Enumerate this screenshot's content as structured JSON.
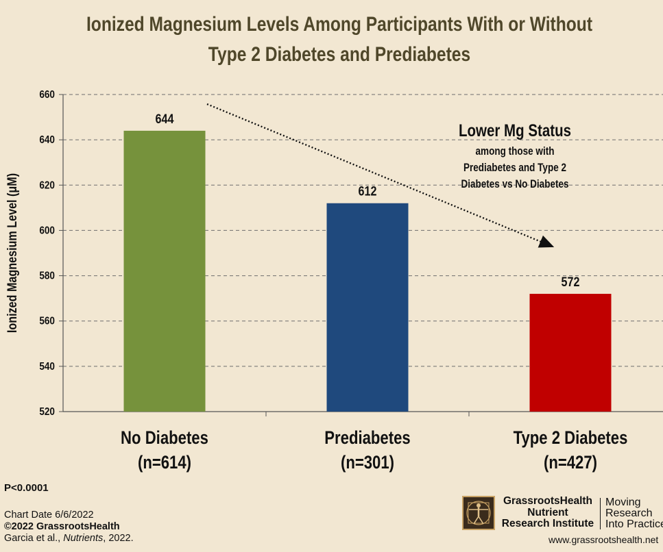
{
  "chart_data": {
    "type": "bar",
    "title_line1": "Ionized Magnesium Levels Among Participants With or Without",
    "title_line2": "Type 2 Diabetes and Prediabetes",
    "ylabel": "Ionized Magnesium Level (μM)",
    "ylim": [
      520,
      660
    ],
    "yticks": [
      520,
      540,
      560,
      580,
      600,
      620,
      640,
      660
    ],
    "grid": true,
    "categories": [
      {
        "name": "No Diabetes",
        "n": "(n=614)"
      },
      {
        "name": "Prediabetes",
        "n": "(n=301)"
      },
      {
        "name": "Type 2 Diabetes",
        "n": "(n=427)"
      }
    ],
    "values": [
      644,
      612,
      572
    ],
    "colors": [
      "#76923c",
      "#1f497d",
      "#c00000"
    ],
    "annotation": {
      "heading": "Lower Mg Status",
      "lines": [
        "among those with",
        "Prediabetes and Type 2",
        "Diabetes vs No Diabetes"
      ]
    }
  },
  "p_value": "P<0.0001",
  "footer": {
    "chart_date": "Chart Date 6/6/2022",
    "copyright": "©2022 GrassrootsHealth",
    "citation_authors": "Garcia et al., ",
    "citation_journal": "Nutrients",
    "citation_year": ", 2022."
  },
  "logo": {
    "line1": "GrassrootsHealth",
    "line2": "Nutrient",
    "line3": "Research Institute",
    "tagline1": "Moving",
    "tagline2": "Research",
    "tagline3": "Into Practice",
    "website": "www.grassrootshealth.net"
  }
}
